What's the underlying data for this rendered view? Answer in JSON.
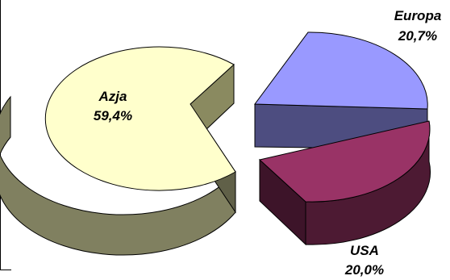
{
  "chart_data": {
    "type": "pie",
    "style": "3d-exploded",
    "slices": [
      {
        "name": "Azja",
        "value": 59.4,
        "label": "59,4%",
        "color": "#ffffcc",
        "side_color": "#808060"
      },
      {
        "name": "Europa",
        "value": 20.7,
        "label": "20,7%",
        "color": "#9999ff",
        "side_color": "#4d4d80"
      },
      {
        "name": "USA",
        "value": 20.0,
        "label": "20,0%",
        "color": "#993366",
        "side_color": "#4d1a33"
      }
    ]
  }
}
